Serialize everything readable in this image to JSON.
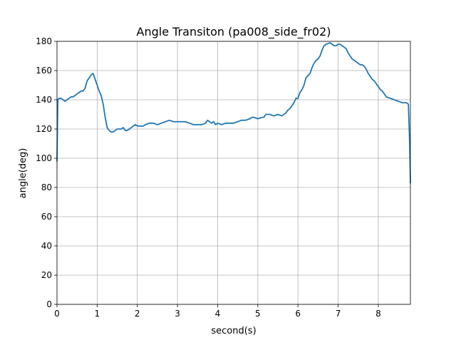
{
  "chart_data": {
    "type": "line",
    "title": "Angle Transiton (pa008_side_fr02)",
    "xlabel": "second(s)",
    "ylabel": "angle(deg)",
    "xlim": [
      0,
      8.8
    ],
    "ylim": [
      0,
      180
    ],
    "xticks": [
      0,
      1,
      2,
      3,
      4,
      5,
      6,
      7,
      8
    ],
    "yticks": [
      0,
      20,
      40,
      60,
      80,
      100,
      120,
      140,
      160,
      180
    ],
    "grid": true,
    "series": [
      {
        "color": "#1f77b4",
        "x": [
          0,
          0.02,
          0.05,
          0.1,
          0.15,
          0.2,
          0.25,
          0.3,
          0.35,
          0.4,
          0.45,
          0.5,
          0.55,
          0.6,
          0.65,
          0.7,
          0.75,
          0.8,
          0.85,
          0.9,
          0.95,
          1.0,
          1.05,
          1.1,
          1.15,
          1.2,
          1.25,
          1.3,
          1.35,
          1.4,
          1.45,
          1.5,
          1.55,
          1.6,
          1.65,
          1.7,
          1.75,
          1.8,
          1.85,
          1.9,
          1.95,
          2.0,
          2.05,
          2.1,
          2.15,
          2.2,
          2.3,
          2.4,
          2.5,
          2.6,
          2.7,
          2.8,
          2.9,
          3.0,
          3.1,
          3.2,
          3.3,
          3.4,
          3.5,
          3.6,
          3.7,
          3.75,
          3.8,
          3.85,
          3.9,
          3.95,
          4.0,
          4.1,
          4.2,
          4.3,
          4.4,
          4.5,
          4.6,
          4.7,
          4.8,
          4.85,
          4.9,
          5.0,
          5.1,
          5.15,
          5.2,
          5.3,
          5.4,
          5.5,
          5.6,
          5.7,
          5.75,
          5.8,
          5.85,
          5.9,
          5.95,
          6.0,
          6.05,
          6.1,
          6.15,
          6.2,
          6.3,
          6.35,
          6.4,
          6.45,
          6.5,
          6.55,
          6.6,
          6.65,
          6.7,
          6.8,
          6.85,
          6.9,
          6.95,
          7.0,
          7.05,
          7.1,
          7.15,
          7.2,
          7.25,
          7.3,
          7.35,
          7.4,
          7.5,
          7.55,
          7.6,
          7.65,
          7.7,
          7.75,
          7.8,
          7.85,
          7.9,
          7.95,
          8.0,
          8.05,
          8.1,
          8.15,
          8.2,
          8.3,
          8.4,
          8.5,
          8.6,
          8.7,
          8.75,
          8.78,
          8.8
        ],
        "y": [
          98,
          140,
          141,
          141,
          140,
          139,
          140,
          141,
          142,
          142,
          143,
          144,
          145,
          146,
          146,
          148,
          153,
          155,
          157,
          158,
          154,
          150,
          146,
          143,
          137,
          128,
          121,
          119,
          118,
          118,
          119,
          120,
          120,
          120,
          121,
          119,
          119,
          120,
          121,
          122,
          123,
          122,
          122,
          122,
          122,
          123,
          124,
          124,
          123,
          124,
          125,
          126,
          125,
          125,
          125,
          125,
          124,
          123,
          123,
          123,
          124,
          126,
          125,
          124,
          125,
          123,
          124,
          123,
          124,
          124,
          124,
          125,
          126,
          126,
          127,
          128,
          128,
          127,
          128,
          128,
          130,
          130,
          129,
          130,
          129,
          131,
          133,
          134,
          136,
          138,
          141,
          141,
          145,
          147,
          150,
          155,
          158,
          162,
          165,
          167,
          168,
          170,
          174,
          177,
          178,
          179,
          178,
          177,
          177,
          178,
          178,
          177,
          176,
          175,
          172,
          170,
          168,
          167,
          165,
          164,
          164,
          163,
          161,
          158,
          156,
          154,
          153,
          151,
          149,
          147,
          146,
          144,
          142,
          141,
          140,
          139,
          138,
          138,
          137,
          112,
          83
        ]
      }
    ]
  }
}
